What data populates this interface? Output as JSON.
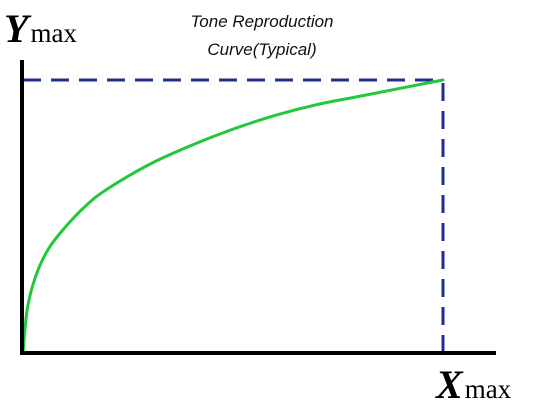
{
  "chart_data": {
    "type": "line",
    "title": "Tone Reproduction",
    "subtitle": "Curve(Typical)",
    "xlabel": {
      "var": "X",
      "sub": "max"
    },
    "ylabel": {
      "var": "Y",
      "sub": "max"
    },
    "xlim": [
      0,
      1
    ],
    "ylim": [
      0,
      1
    ],
    "grid": false,
    "series": [
      {
        "x": [
          0,
          0.01,
          0.03,
          0.06,
          0.1,
          0.15,
          0.2,
          0.3,
          0.4,
          0.5,
          0.6,
          0.7,
          0.8,
          0.9,
          1.0
        ],
        "y": [
          0,
          0.16,
          0.28,
          0.38,
          0.46,
          0.54,
          0.6,
          0.69,
          0.76,
          0.82,
          0.87,
          0.91,
          0.94,
          0.97,
          1.0
        ]
      }
    ],
    "reference_lines": [
      {
        "kind": "horizontal",
        "at": 1.0,
        "from": 0,
        "to": 1,
        "style": "dashed"
      },
      {
        "kind": "vertical",
        "at": 1.0,
        "from": 0,
        "to": 1,
        "style": "dashed"
      }
    ],
    "colors": {
      "curve": "#22c73a",
      "reference": "#1f2f8f",
      "axes": "#000000"
    }
  }
}
